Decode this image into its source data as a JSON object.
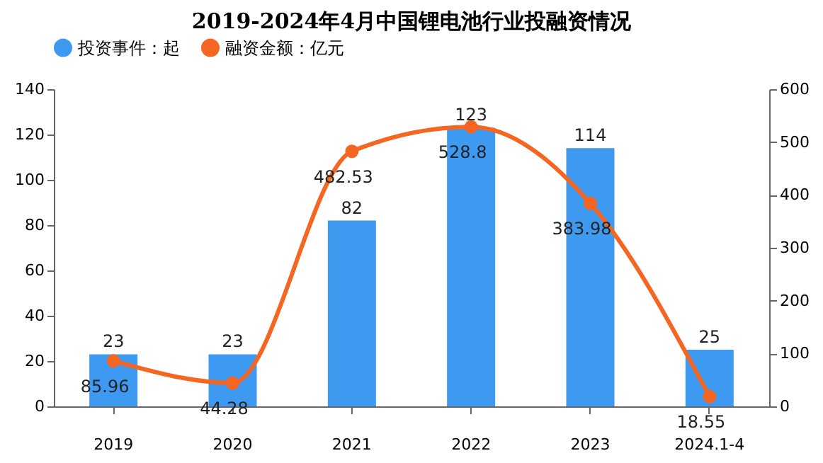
{
  "chart_data": {
    "type": "bar",
    "title": "2019-2024年4月中国锂电池行业投融资情况",
    "categories": [
      "2019",
      "2020",
      "2021",
      "2022",
      "2023",
      "2024.1-4"
    ],
    "series": [
      {
        "name": "投资事件：起",
        "color": "#3d9af0",
        "values": [
          23,
          23,
          82,
          123,
          114,
          25
        ]
      },
      {
        "name": "融资金额：亿元",
        "type": "line",
        "axis": "y2",
        "color": "#f56622",
        "marker": "circle",
        "values": [
          85.96,
          44.28,
          482.53,
          528.8,
          383.98,
          18.55
        ]
      }
    ],
    "ylim": [
      0,
      140
    ],
    "yticks": [
      0,
      20,
      40,
      60,
      80,
      100,
      120,
      140
    ],
    "y2lim": [
      0,
      600
    ],
    "y2ticks": [
      0,
      100,
      200,
      300,
      400,
      500,
      600
    ],
    "data_labels": true,
    "legend": "top",
    "grid": false
  }
}
